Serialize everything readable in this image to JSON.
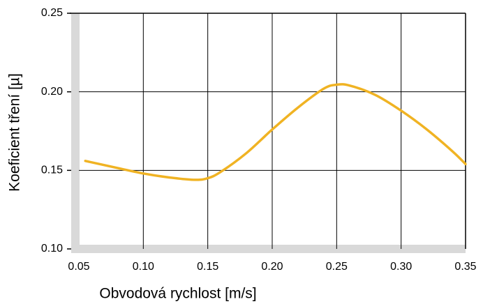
{
  "chart_data": {
    "type": "line",
    "x_label": "Obvodová rychlost [m/s]",
    "y_label": "Koeficient tření [µ]",
    "x": [
      0.055,
      0.08,
      0.1,
      0.12,
      0.14,
      0.15,
      0.16,
      0.18,
      0.2,
      0.22,
      0.24,
      0.25,
      0.26,
      0.28,
      0.3,
      0.32,
      0.34,
      0.35
    ],
    "series": [
      {
        "color": "#f0b323",
        "values": [
          0.156,
          0.1515,
          0.148,
          0.1455,
          0.144,
          0.145,
          0.149,
          0.161,
          0.176,
          0.19,
          0.202,
          0.2045,
          0.204,
          0.198,
          0.188,
          0.176,
          0.162,
          0.154
        ]
      }
    ],
    "xlim": [
      0.05,
      0.35
    ],
    "xticks": [
      {
        "value": 0.05,
        "label": "0.05"
      },
      {
        "value": 0.1,
        "label": "0.10"
      },
      {
        "value": 0.15,
        "label": "0.15"
      },
      {
        "value": 0.2,
        "label": "0.20"
      },
      {
        "value": 0.25,
        "label": "0.25"
      },
      {
        "value": 0.3,
        "label": "0.30"
      },
      {
        "value": 0.35,
        "label": "0.35"
      }
    ],
    "ylim": [
      0.1,
      0.25
    ],
    "yticks": [
      {
        "value": 0.1,
        "label": "0.10"
      },
      {
        "value": 0.15,
        "label": "0.15"
      },
      {
        "value": 0.2,
        "label": "0.20"
      },
      {
        "value": 0.25,
        "label": "0.25"
      }
    ],
    "grid": true
  }
}
